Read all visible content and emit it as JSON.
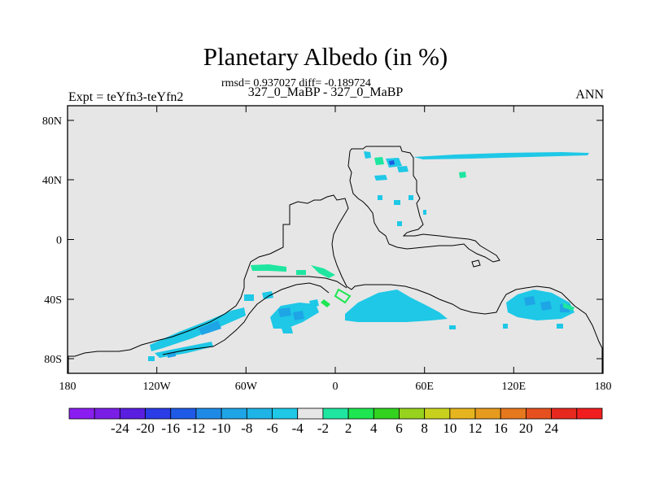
{
  "title": "Planetary Albedo (in %)",
  "stats": "rmsd= 0.937027 diff= -0.189724",
  "expt": "Expt = teYfn3-teYfn2",
  "period": "327_0_MaBP - 327_0_MaBP",
  "season": "ANN",
  "axes": {
    "x_ticks": [
      "180",
      "120W",
      "60W",
      "0",
      "60E",
      "120E",
      "180"
    ],
    "y_ticks": [
      "80N",
      "40N",
      "0",
      "40S",
      "80S"
    ]
  },
  "colorbar": {
    "colors": [
      "#8a1ef0",
      "#7a1ee6",
      "#5a1ee0",
      "#2a3ce6",
      "#1e5ae6",
      "#1e8ae6",
      "#1ea5e6",
      "#1eb4e6",
      "#1ec8e6",
      "#e6e6e6",
      "#1ee6a0",
      "#1ee650",
      "#32d21e",
      "#96d21e",
      "#c8d21e",
      "#e6b41e",
      "#e69b1e",
      "#e6781e",
      "#e6501e",
      "#e6281e",
      "#f01e1e"
    ],
    "labels": [
      "-24",
      "-20",
      "-16",
      "-12",
      "-10",
      "-8",
      "-6",
      "-4",
      "-2",
      "2",
      "4",
      "6",
      "8",
      "10",
      "12",
      "16",
      "20",
      "24"
    ]
  },
  "colors": {
    "land_background": "#e6e6e6",
    "cyan_fill": "#1ec8e6",
    "mid_blue_fill": "#1ea5e6",
    "dark_blue_fill": "#1e5ae6",
    "green_fill": "#1ee6a0"
  }
}
